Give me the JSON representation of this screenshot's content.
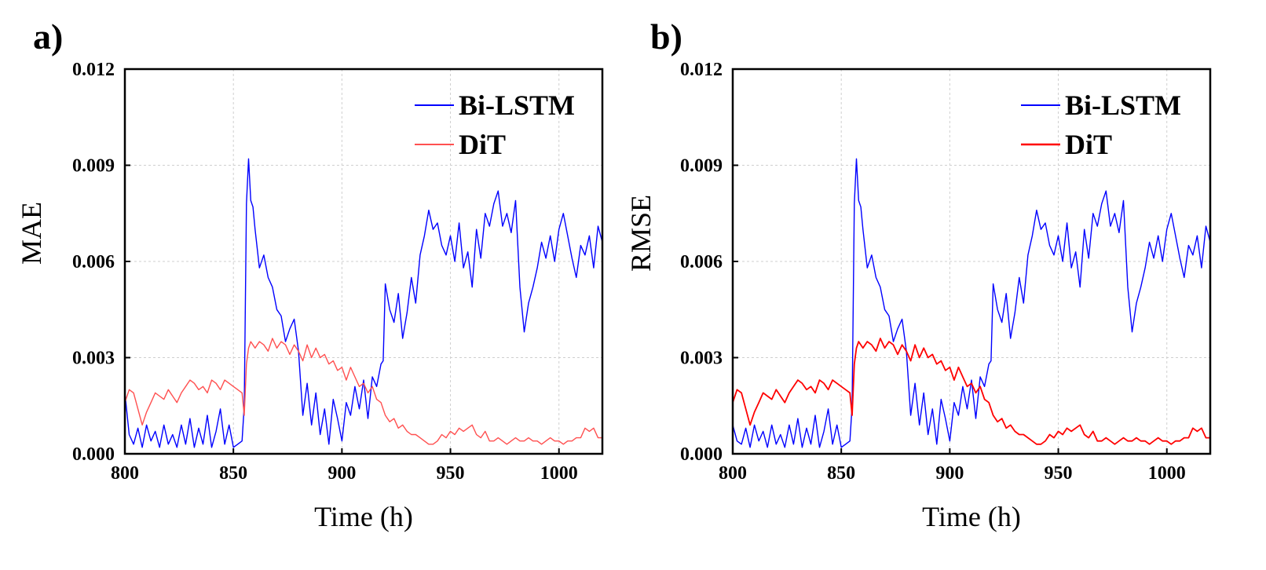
{
  "chart_data": [
    {
      "type": "line",
      "panel_label": "a)",
      "title": "",
      "xlabel": "Time (h)",
      "ylabel": "MAE",
      "xlim": [
        800,
        1020
      ],
      "ylim": [
        0.0,
        0.012
      ],
      "xticks": [
        800,
        850,
        900,
        950,
        1000
      ],
      "yticks": [
        0.0,
        0.003,
        0.006,
        0.009,
        0.012
      ],
      "xtick_labels": [
        "800",
        "850",
        "900",
        "950",
        "1000"
      ],
      "ytick_labels": [
        "0.000",
        "0.003",
        "0.006",
        "0.009",
        "0.012"
      ],
      "grid": true,
      "legend_position": "top-right",
      "series": [
        {
          "name": "Bi-LSTM",
          "color": "#0000ff",
          "x": [
            800,
            802,
            804,
            806,
            808,
            810,
            812,
            814,
            816,
            818,
            820,
            822,
            824,
            826,
            828,
            830,
            832,
            834,
            836,
            838,
            840,
            842,
            844,
            846,
            848,
            850,
            852,
            854,
            855,
            856,
            857,
            858,
            859,
            860,
            862,
            864,
            866,
            868,
            870,
            872,
            874,
            876,
            878,
            880,
            882,
            884,
            886,
            888,
            890,
            892,
            894,
            896,
            898,
            900,
            902,
            904,
            906,
            908,
            910,
            912,
            914,
            916,
            918,
            919,
            920,
            922,
            924,
            926,
            928,
            930,
            932,
            934,
            936,
            938,
            940,
            942,
            944,
            946,
            948,
            950,
            952,
            954,
            956,
            958,
            960,
            962,
            964,
            966,
            968,
            970,
            972,
            974,
            976,
            978,
            980,
            982,
            984,
            986,
            988,
            990,
            992,
            994,
            996,
            998,
            1000,
            1002,
            1004,
            1006,
            1008,
            1010,
            1012,
            1014,
            1016,
            1018,
            1020
          ],
          "y": [
            0.0019,
            0.0006,
            0.0003,
            0.0008,
            0.0002,
            0.0009,
            0.0004,
            0.0007,
            0.0002,
            0.0009,
            0.0003,
            0.0006,
            0.0002,
            0.0009,
            0.0003,
            0.0011,
            0.0002,
            0.0008,
            0.0003,
            0.0012,
            0.0002,
            0.0007,
            0.0014,
            0.0003,
            0.0009,
            0.0002,
            0.0003,
            0.0004,
            0.0015,
            0.0078,
            0.0092,
            0.0079,
            0.0077,
            0.007,
            0.0058,
            0.0062,
            0.0055,
            0.0052,
            0.0045,
            0.0043,
            0.0035,
            0.0039,
            0.0042,
            0.0032,
            0.0012,
            0.0022,
            0.0009,
            0.0019,
            0.0006,
            0.0014,
            0.0003,
            0.0017,
            0.0011,
            0.0004,
            0.0016,
            0.0012,
            0.0021,
            0.0014,
            0.0023,
            0.0011,
            0.0024,
            0.0021,
            0.0028,
            0.0029,
            0.0053,
            0.0045,
            0.0041,
            0.005,
            0.0036,
            0.0044,
            0.0055,
            0.0047,
            0.0062,
            0.0068,
            0.0076,
            0.007,
            0.0072,
            0.0065,
            0.0062,
            0.0068,
            0.006,
            0.0072,
            0.0058,
            0.0063,
            0.0052,
            0.007,
            0.0061,
            0.0075,
            0.0071,
            0.0078,
            0.0082,
            0.0071,
            0.0075,
            0.0069,
            0.0079,
            0.0052,
            0.0038,
            0.0047,
            0.0052,
            0.0058,
            0.0066,
            0.0061,
            0.0068,
            0.006,
            0.007,
            0.0075,
            0.0068,
            0.0061,
            0.0055,
            0.0065,
            0.0062,
            0.0068,
            0.0058,
            0.0071,
            0.0066
          ],
          "line_width": 1.4
        },
        {
          "name": "DiT",
          "color": "#ff5050",
          "x": [
            800,
            802,
            804,
            806,
            808,
            810,
            812,
            814,
            816,
            818,
            820,
            822,
            824,
            826,
            828,
            830,
            832,
            834,
            836,
            838,
            840,
            842,
            844,
            846,
            848,
            850,
            852,
            854,
            855,
            856,
            857,
            858,
            860,
            862,
            864,
            866,
            868,
            870,
            872,
            874,
            876,
            878,
            880,
            882,
            884,
            886,
            888,
            890,
            892,
            894,
            896,
            898,
            900,
            902,
            904,
            906,
            908,
            910,
            912,
            914,
            916,
            918,
            920,
            922,
            924,
            926,
            928,
            930,
            932,
            934,
            936,
            938,
            940,
            942,
            944,
            946,
            948,
            950,
            952,
            954,
            956,
            958,
            960,
            962,
            964,
            966,
            968,
            970,
            972,
            974,
            976,
            978,
            980,
            982,
            984,
            986,
            988,
            990,
            992,
            994,
            996,
            998,
            1000,
            1002,
            1004,
            1006,
            1008,
            1010,
            1012,
            1014,
            1016,
            1018,
            1020
          ],
          "y": [
            0.0016,
            0.002,
            0.0019,
            0.0014,
            0.0009,
            0.0013,
            0.0016,
            0.0019,
            0.0018,
            0.0017,
            0.002,
            0.0018,
            0.0016,
            0.0019,
            0.0021,
            0.0023,
            0.0022,
            0.002,
            0.0021,
            0.0019,
            0.0023,
            0.0022,
            0.002,
            0.0023,
            0.0022,
            0.0021,
            0.002,
            0.0019,
            0.0012,
            0.0028,
            0.0033,
            0.0035,
            0.0033,
            0.0035,
            0.0034,
            0.0032,
            0.0036,
            0.0033,
            0.0035,
            0.0034,
            0.0031,
            0.0034,
            0.0032,
            0.0029,
            0.0034,
            0.003,
            0.0033,
            0.003,
            0.0031,
            0.0028,
            0.0029,
            0.0026,
            0.0027,
            0.0023,
            0.0027,
            0.0024,
            0.0021,
            0.0022,
            0.0019,
            0.0021,
            0.0017,
            0.0016,
            0.0012,
            0.001,
            0.0011,
            0.0008,
            0.0009,
            0.0007,
            0.0006,
            0.0006,
            0.0005,
            0.0004,
            0.0003,
            0.0003,
            0.0004,
            0.0006,
            0.0005,
            0.0007,
            0.0006,
            0.0008,
            0.0007,
            0.0008,
            0.0009,
            0.0006,
            0.0005,
            0.0007,
            0.0004,
            0.0004,
            0.0005,
            0.0004,
            0.0003,
            0.0004,
            0.0005,
            0.0004,
            0.0004,
            0.0005,
            0.0004,
            0.0004,
            0.0003,
            0.0004,
            0.0005,
            0.0004,
            0.0004,
            0.0003,
            0.0004,
            0.0004,
            0.0005,
            0.0005,
            0.0008,
            0.0007,
            0.0008,
            0.0005,
            0.0005
          ],
          "line_width": 1.4
        }
      ]
    },
    {
      "type": "line",
      "panel_label": "b)",
      "title": "",
      "xlabel": "Time (h)",
      "ylabel": "RMSE",
      "xlim": [
        800,
        1020
      ],
      "ylim": [
        0.0,
        0.012
      ],
      "xticks": [
        800,
        850,
        900,
        950,
        1000
      ],
      "yticks": [
        0.0,
        0.003,
        0.006,
        0.009,
        0.012
      ],
      "xtick_labels": [
        "800",
        "850",
        "900",
        "950",
        "1000"
      ],
      "ytick_labels": [
        "0.000",
        "0.003",
        "0.006",
        "0.009",
        "0.012"
      ],
      "grid": true,
      "legend_position": "top-right",
      "series": [
        {
          "name": "Bi-LSTM",
          "color": "#0000ff",
          "x": [
            800,
            802,
            804,
            806,
            808,
            810,
            812,
            814,
            816,
            818,
            820,
            822,
            824,
            826,
            828,
            830,
            832,
            834,
            836,
            838,
            840,
            842,
            844,
            846,
            848,
            850,
            852,
            854,
            855,
            856,
            857,
            858,
            859,
            860,
            862,
            864,
            866,
            868,
            870,
            872,
            874,
            876,
            878,
            880,
            882,
            884,
            886,
            888,
            890,
            892,
            894,
            896,
            898,
            900,
            902,
            904,
            906,
            908,
            910,
            912,
            914,
            916,
            918,
            919,
            920,
            922,
            924,
            926,
            928,
            930,
            932,
            934,
            936,
            938,
            940,
            942,
            944,
            946,
            948,
            950,
            952,
            954,
            956,
            958,
            960,
            962,
            964,
            966,
            968,
            970,
            972,
            974,
            976,
            978,
            980,
            982,
            984,
            986,
            988,
            990,
            992,
            994,
            996,
            998,
            1000,
            1002,
            1004,
            1006,
            1008,
            1010,
            1012,
            1014,
            1016,
            1018,
            1020
          ],
          "y": [
            0.0009,
            0.0004,
            0.0003,
            0.0008,
            0.0002,
            0.0009,
            0.0004,
            0.0007,
            0.0002,
            0.0009,
            0.0003,
            0.0006,
            0.0002,
            0.0009,
            0.0003,
            0.0011,
            0.0002,
            0.0008,
            0.0003,
            0.0012,
            0.0002,
            0.0007,
            0.0014,
            0.0003,
            0.0009,
            0.0002,
            0.0003,
            0.0004,
            0.0015,
            0.0078,
            0.0092,
            0.0079,
            0.0077,
            0.007,
            0.0058,
            0.0062,
            0.0055,
            0.0052,
            0.0045,
            0.0043,
            0.0035,
            0.0039,
            0.0042,
            0.0032,
            0.0012,
            0.0022,
            0.0009,
            0.0019,
            0.0006,
            0.0014,
            0.0003,
            0.0017,
            0.0011,
            0.0004,
            0.0016,
            0.0012,
            0.0021,
            0.0014,
            0.0023,
            0.0011,
            0.0024,
            0.0021,
            0.0028,
            0.0029,
            0.0053,
            0.0045,
            0.0041,
            0.005,
            0.0036,
            0.0044,
            0.0055,
            0.0047,
            0.0062,
            0.0068,
            0.0076,
            0.007,
            0.0072,
            0.0065,
            0.0062,
            0.0068,
            0.006,
            0.0072,
            0.0058,
            0.0063,
            0.0052,
            0.007,
            0.0061,
            0.0075,
            0.0071,
            0.0078,
            0.0082,
            0.0071,
            0.0075,
            0.0069,
            0.0079,
            0.0052,
            0.0038,
            0.0047,
            0.0052,
            0.0058,
            0.0066,
            0.0061,
            0.0068,
            0.006,
            0.007,
            0.0075,
            0.0068,
            0.0061,
            0.0055,
            0.0065,
            0.0062,
            0.0068,
            0.0058,
            0.0071,
            0.0066
          ],
          "line_width": 1.4
        },
        {
          "name": "DiT",
          "color": "#ff0000",
          "x": [
            800,
            802,
            804,
            806,
            808,
            810,
            812,
            814,
            816,
            818,
            820,
            822,
            824,
            826,
            828,
            830,
            832,
            834,
            836,
            838,
            840,
            842,
            844,
            846,
            848,
            850,
            852,
            854,
            855,
            856,
            857,
            858,
            860,
            862,
            864,
            866,
            868,
            870,
            872,
            874,
            876,
            878,
            880,
            882,
            884,
            886,
            888,
            890,
            892,
            894,
            896,
            898,
            900,
            902,
            904,
            906,
            908,
            910,
            912,
            914,
            916,
            918,
            920,
            922,
            924,
            926,
            928,
            930,
            932,
            934,
            936,
            938,
            940,
            942,
            944,
            946,
            948,
            950,
            952,
            954,
            956,
            958,
            960,
            962,
            964,
            966,
            968,
            970,
            972,
            974,
            976,
            978,
            980,
            982,
            984,
            986,
            988,
            990,
            992,
            994,
            996,
            998,
            1000,
            1002,
            1004,
            1006,
            1008,
            1010,
            1012,
            1014,
            1016,
            1018,
            1020
          ],
          "y": [
            0.0016,
            0.002,
            0.0019,
            0.0014,
            0.0009,
            0.0013,
            0.0016,
            0.0019,
            0.0018,
            0.0017,
            0.002,
            0.0018,
            0.0016,
            0.0019,
            0.0021,
            0.0023,
            0.0022,
            0.002,
            0.0021,
            0.0019,
            0.0023,
            0.0022,
            0.002,
            0.0023,
            0.0022,
            0.0021,
            0.002,
            0.0019,
            0.0012,
            0.0028,
            0.0033,
            0.0035,
            0.0033,
            0.0035,
            0.0034,
            0.0032,
            0.0036,
            0.0033,
            0.0035,
            0.0034,
            0.0031,
            0.0034,
            0.0032,
            0.0029,
            0.0034,
            0.003,
            0.0033,
            0.003,
            0.0031,
            0.0028,
            0.0029,
            0.0026,
            0.0027,
            0.0023,
            0.0027,
            0.0024,
            0.0021,
            0.0022,
            0.0019,
            0.0021,
            0.0017,
            0.0016,
            0.0012,
            0.001,
            0.0011,
            0.0008,
            0.0009,
            0.0007,
            0.0006,
            0.0006,
            0.0005,
            0.0004,
            0.0003,
            0.0003,
            0.0004,
            0.0006,
            0.0005,
            0.0007,
            0.0006,
            0.0008,
            0.0007,
            0.0008,
            0.0009,
            0.0006,
            0.0005,
            0.0007,
            0.0004,
            0.0004,
            0.0005,
            0.0004,
            0.0003,
            0.0004,
            0.0005,
            0.0004,
            0.0004,
            0.0005,
            0.0004,
            0.0004,
            0.0003,
            0.0004,
            0.0005,
            0.0004,
            0.0004,
            0.0003,
            0.0004,
            0.0004,
            0.0005,
            0.0005,
            0.0008,
            0.0007,
            0.0008,
            0.0005,
            0.0005
          ],
          "line_width": 1.8
        }
      ]
    }
  ]
}
